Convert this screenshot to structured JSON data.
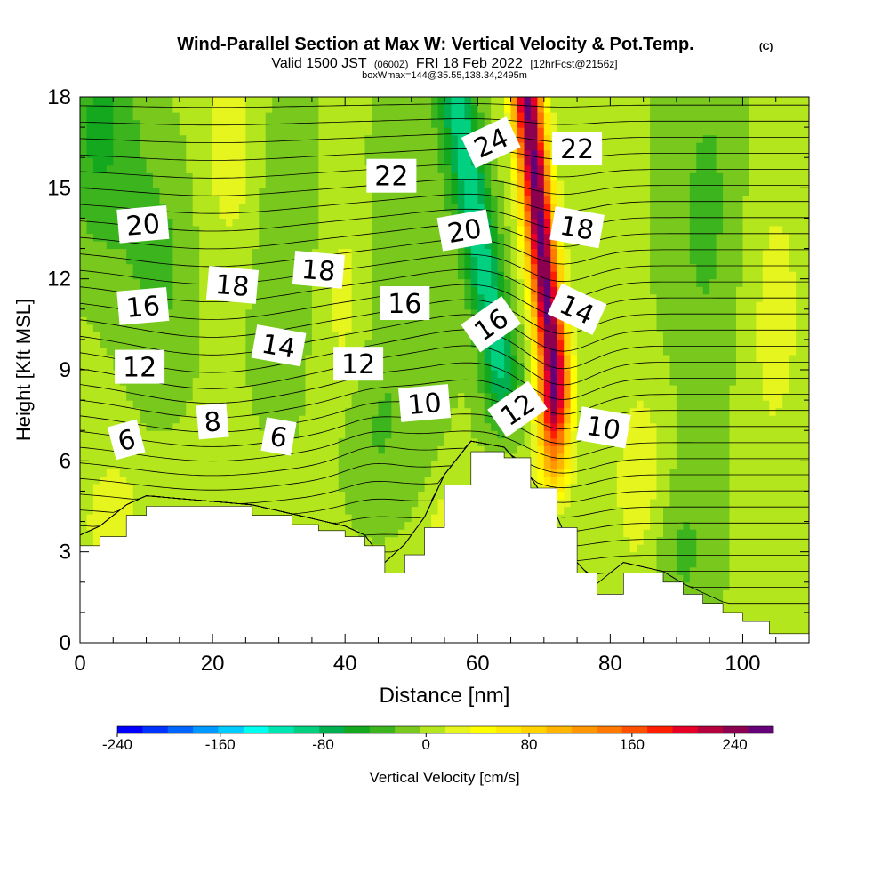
{
  "chart_data": {
    "type": "heatmap",
    "title": "Wind-Parallel Section at Max W: Vertical Velocity & Pot.Temp.",
    "title_mark": "(C)",
    "subtitle": {
      "valid_prefix": "Valid 1500 JST",
      "utc": "(0600Z)",
      "date": "FRI 18 Feb 2022",
      "forecast": "[12hrFcst@2156z]"
    },
    "subsubtitle": "boxWmax=144@35.55,138.34,2495m",
    "xlabel": "Distance [nm]",
    "ylabel": "Height [Kft MSL]",
    "xlim": [
      0,
      110
    ],
    "ylim": [
      0,
      18
    ],
    "x_ticks": [
      0,
      20,
      40,
      60,
      80,
      100
    ],
    "y_ticks": [
      0,
      3,
      6,
      9,
      12,
      15,
      18
    ],
    "colorbar": {
      "label": "Vertical Velocity [cm/s]",
      "range": [
        -240,
        270
      ],
      "step": 20,
      "tick_values": [
        -240,
        -160,
        -80,
        0,
        80,
        160,
        240
      ],
      "tick_labels": [
        "-240",
        "-160",
        "-80",
        "0",
        "80",
        "160",
        "240"
      ],
      "colors": [
        "#0000ff",
        "#0033ff",
        "#0066ff",
        "#0099ff",
        "#00ccff",
        "#00ffee",
        "#00e6b0",
        "#00d080",
        "#00b050",
        "#14a81e",
        "#3cb41e",
        "#78c81e",
        "#b4e61e",
        "#e6f51e",
        "#ffff00",
        "#ffea00",
        "#ffd200",
        "#ffb400",
        "#ff9600",
        "#ff7800",
        "#ff5000",
        "#ff1e00",
        "#e60028",
        "#b4003c",
        "#8c0050",
        "#640078"
      ]
    },
    "terrain_kft": [
      [
        0,
        3.2
      ],
      [
        3,
        3.5
      ],
      [
        7,
        4.2
      ],
      [
        10,
        4.5
      ],
      [
        26,
        4.2
      ],
      [
        32,
        3.9
      ],
      [
        36,
        3.7
      ],
      [
        40,
        3.5
      ],
      [
        43,
        3.2
      ],
      [
        46,
        2.3
      ],
      [
        49,
        2.9
      ],
      [
        52,
        3.8
      ],
      [
        55,
        5.2
      ],
      [
        59,
        6.3
      ],
      [
        64,
        6.1
      ],
      [
        68,
        5.1
      ],
      [
        72,
        3.8
      ],
      [
        75,
        2.3
      ],
      [
        78,
        1.6
      ],
      [
        82,
        2.3
      ],
      [
        88,
        2.0
      ],
      [
        91,
        1.6
      ],
      [
        94,
        1.3
      ],
      [
        97,
        1.0
      ],
      [
        100,
        0.7
      ],
      [
        104,
        0.3
      ],
      [
        107,
        0.3
      ],
      [
        110,
        0.3
      ]
    ],
    "theta_labels": [
      {
        "x": 7,
        "y": 6.7,
        "text": "6",
        "angle": 15
      },
      {
        "x": 20,
        "y": 7.3,
        "text": "8",
        "angle": 5
      },
      {
        "x": 30,
        "y": 6.8,
        "text": "6",
        "angle": -10
      },
      {
        "x": 9,
        "y": 9.1,
        "text": "12",
        "angle": 0
      },
      {
        "x": 30,
        "y": 9.8,
        "text": "14",
        "angle": -10
      },
      {
        "x": 42,
        "y": 9.2,
        "text": "12",
        "angle": 0
      },
      {
        "x": 52,
        "y": 7.9,
        "text": "10",
        "angle": 5
      },
      {
        "x": 66,
        "y": 7.7,
        "text": "12",
        "angle": 35
      },
      {
        "x": 79,
        "y": 7.1,
        "text": "10",
        "angle": -10
      },
      {
        "x": 9.5,
        "y": 11.1,
        "text": "16",
        "angle": 5
      },
      {
        "x": 23,
        "y": 11.8,
        "text": "18",
        "angle": -5
      },
      {
        "x": 36,
        "y": 12.3,
        "text": "18",
        "angle": -5
      },
      {
        "x": 49,
        "y": 11.2,
        "text": "16",
        "angle": 0
      },
      {
        "x": 62,
        "y": 10.5,
        "text": "16",
        "angle": 35
      },
      {
        "x": 75,
        "y": 11.0,
        "text": "14",
        "angle": -25
      },
      {
        "x": 9.5,
        "y": 13.8,
        "text": "20",
        "angle": 5
      },
      {
        "x": 47,
        "y": 15.4,
        "text": "22",
        "angle": 0
      },
      {
        "x": 58,
        "y": 13.6,
        "text": "20",
        "angle": 10
      },
      {
        "x": 62,
        "y": 16.5,
        "text": "24",
        "angle": 25
      },
      {
        "x": 75,
        "y": 13.7,
        "text": "18",
        "angle": -10
      },
      {
        "x": 75,
        "y": 16.3,
        "text": "22",
        "angle": 0
      }
    ]
  }
}
